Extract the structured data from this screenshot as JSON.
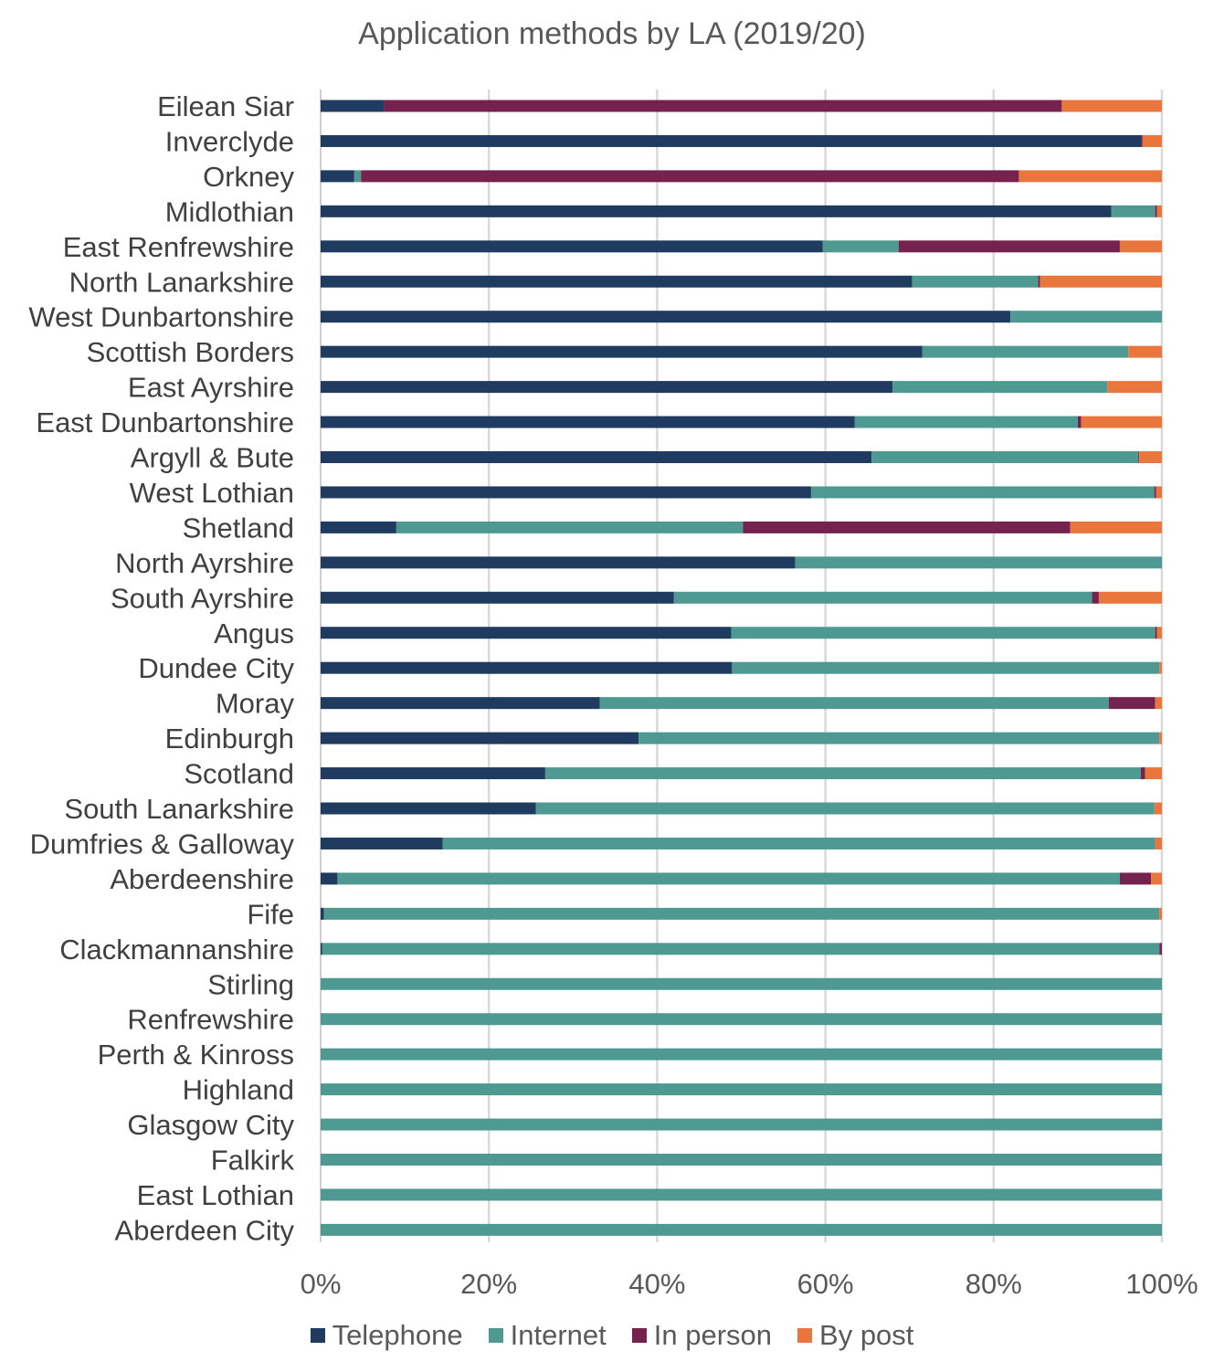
{
  "chart_data": {
    "type": "bar",
    "orientation": "horizontal",
    "stacked": true,
    "title": "Application methods by LA (2019/20)",
    "xlabel": "",
    "ylabel": "",
    "xlim": [
      0,
      100
    ],
    "x_ticks": [
      "0%",
      "20%",
      "40%",
      "60%",
      "80%",
      "100%"
    ],
    "grid": true,
    "legend_position": "bottom",
    "categories": [
      "Eilean Siar",
      "Inverclyde",
      "Orkney",
      "Midlothian",
      "East Renfrewshire",
      "North Lanarkshire",
      "West Dunbartonshire",
      "Scottish Borders",
      "East Ayrshire",
      "East Dunbartonshire",
      "Argyll & Bute",
      "West Lothian",
      "Shetland",
      "North Ayrshire",
      "South Ayrshire",
      "Angus",
      "Dundee City",
      "Moray",
      "Edinburgh",
      "Scotland",
      "South Lanarkshire",
      "Dumfries & Galloway",
      "Aberdeenshire",
      "Fife",
      "Clackmannanshire",
      "Stirling",
      "Renfrewshire",
      "Perth & Kinross",
      "Highland",
      "Glasgow City",
      "Falkirk",
      "East Lothian",
      "Aberdeen City"
    ],
    "series": [
      {
        "name": "Telephone",
        "color": "#1F3B5F",
        "values": [
          7.5,
          97.5,
          4,
          94,
          59.7,
          70.3,
          82,
          71.5,
          68,
          63.5,
          65.5,
          58.3,
          9,
          56.4,
          42,
          48.8,
          48.9,
          33.2,
          37.8,
          26.7,
          25.6,
          14.5,
          2,
          0.4,
          0.2,
          0,
          0,
          0,
          0,
          0,
          0,
          0,
          0
        ]
      },
      {
        "name": "Internet",
        "color": "#4E9A92",
        "values": [
          0,
          0,
          0.8,
          5.2,
          9,
          15,
          18,
          24.5,
          25.5,
          26.5,
          31.7,
          40.8,
          41.2,
          43.6,
          49.7,
          50.4,
          50.8,
          60.5,
          61.9,
          70.8,
          73.5,
          84.7,
          93,
          99.3,
          99.5,
          100,
          100,
          100,
          100,
          100,
          100,
          100,
          100
        ]
      },
      {
        "name": "In person",
        "color": "#75234E",
        "values": [
          80.6,
          0.2,
          78.2,
          0.2,
          26.3,
          0.2,
          0,
          0,
          0,
          0.4,
          0.1,
          0.2,
          38.9,
          0,
          0.8,
          0.2,
          0,
          5.5,
          0,
          0.5,
          0,
          0,
          3.7,
          0,
          0.3,
          0,
          0,
          0,
          0,
          0,
          0,
          0,
          0
        ]
      },
      {
        "name": "By post",
        "color": "#E9773D",
        "values": [
          11.9,
          2.3,
          17,
          0.6,
          5,
          14.5,
          0,
          4,
          6.5,
          9.6,
          2.7,
          0.7,
          10.9,
          0,
          7.5,
          0.6,
          0.3,
          0.8,
          0.3,
          2,
          0.9,
          0.8,
          1.3,
          0.3,
          0,
          0,
          0,
          0,
          0,
          0,
          0,
          0,
          0
        ]
      }
    ]
  }
}
